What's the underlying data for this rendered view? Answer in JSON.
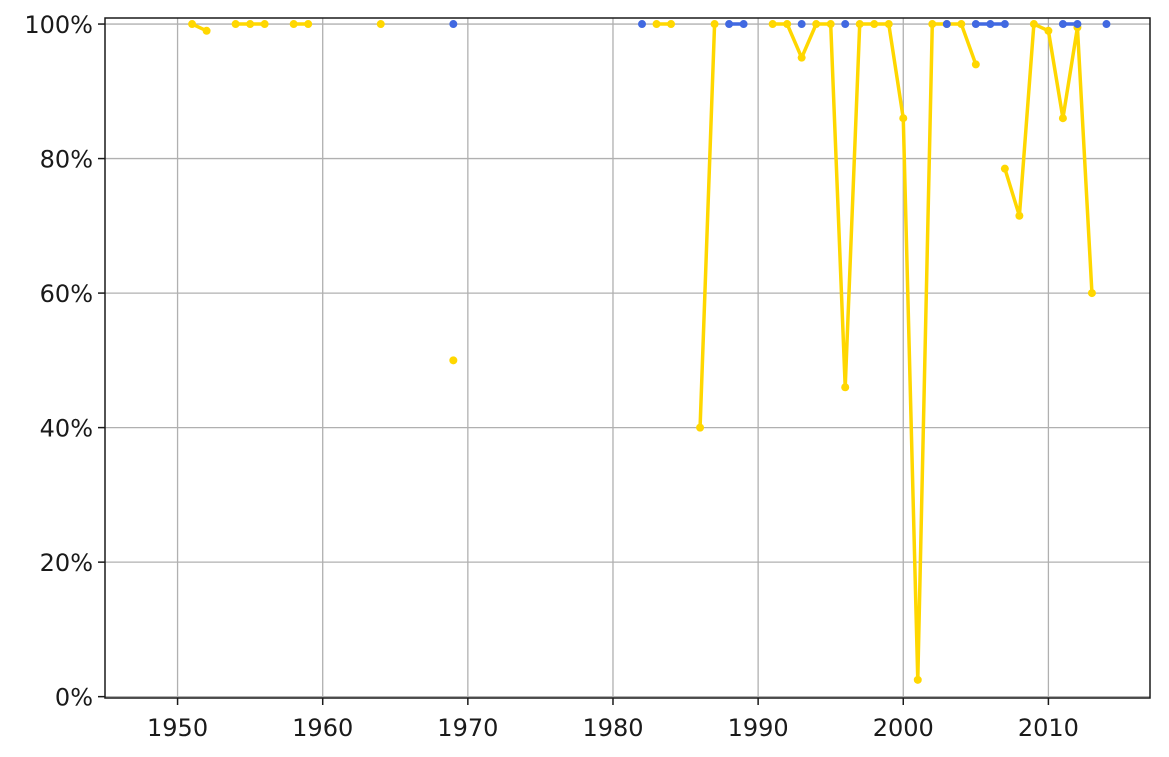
{
  "chart_data": {
    "type": "line",
    "title": "",
    "xlabel": "",
    "ylabel": "",
    "xlim": [
      1945,
      2017
    ],
    "ylim": [
      -0.2,
      100.9
    ],
    "grid": true,
    "xticks": [
      1950,
      1960,
      1970,
      1980,
      1990,
      2000,
      2010
    ],
    "xtick_labels": [
      "1950",
      "1960",
      "1970",
      "1980",
      "1990",
      "2000",
      "2010"
    ],
    "yticks": [
      0,
      20,
      40,
      60,
      80,
      100
    ],
    "ytick_labels": [
      "0%",
      "20%",
      "40%",
      "60%",
      "80%",
      "100%"
    ],
    "series": [
      {
        "color": "#ffd700",
        "points": [
          [
            1951,
            100
          ],
          [
            1952,
            99
          ],
          [
            1953,
            null
          ],
          [
            1954,
            100
          ],
          [
            1955,
            100
          ],
          [
            1956,
            100
          ],
          [
            1957,
            null
          ],
          [
            1958,
            100
          ],
          [
            1959,
            100
          ],
          [
            1960,
            null
          ],
          [
            1964,
            100
          ],
          [
            1965,
            null
          ],
          [
            1969,
            50
          ],
          [
            1970,
            null
          ],
          [
            1983,
            100
          ],
          [
            1984,
            100
          ],
          [
            1985,
            null
          ],
          [
            1986,
            40
          ],
          [
            1987,
            100
          ],
          [
            1988,
            null
          ],
          [
            1991,
            100
          ],
          [
            1992,
            100
          ],
          [
            1993,
            95
          ],
          [
            1994,
            100
          ],
          [
            1995,
            100
          ],
          [
            1996,
            46
          ],
          [
            1997,
            100
          ],
          [
            1998,
            100
          ],
          [
            1999,
            100
          ],
          [
            2000,
            86
          ],
          [
            2001,
            2.5
          ],
          [
            2002,
            100
          ],
          [
            2003,
            100
          ],
          [
            2004,
            100
          ],
          [
            2005,
            94
          ],
          [
            2006,
            null
          ],
          [
            2007,
            78.5
          ],
          [
            2008,
            71.5
          ],
          [
            2009,
            100
          ],
          [
            2010,
            99
          ],
          [
            2011,
            86
          ],
          [
            2012,
            99.5
          ],
          [
            2013,
            60
          ]
        ]
      },
      {
        "color": "#4169e1",
        "points": [
          [
            1969,
            100
          ],
          [
            1970,
            null
          ],
          [
            1982,
            100
          ],
          [
            1983,
            null
          ],
          [
            1988,
            100
          ],
          [
            1989,
            100
          ],
          [
            1990,
            null
          ],
          [
            1993,
            100
          ],
          [
            1994,
            null
          ],
          [
            1996,
            100
          ],
          [
            1997,
            null
          ],
          [
            2003,
            100
          ],
          [
            2004,
            null
          ],
          [
            2005,
            100
          ],
          [
            2006,
            100
          ],
          [
            2007,
            100
          ],
          [
            2008,
            null
          ],
          [
            2011,
            100
          ],
          [
            2012,
            100
          ],
          [
            2013,
            null
          ],
          [
            2014,
            100
          ]
        ]
      }
    ]
  }
}
